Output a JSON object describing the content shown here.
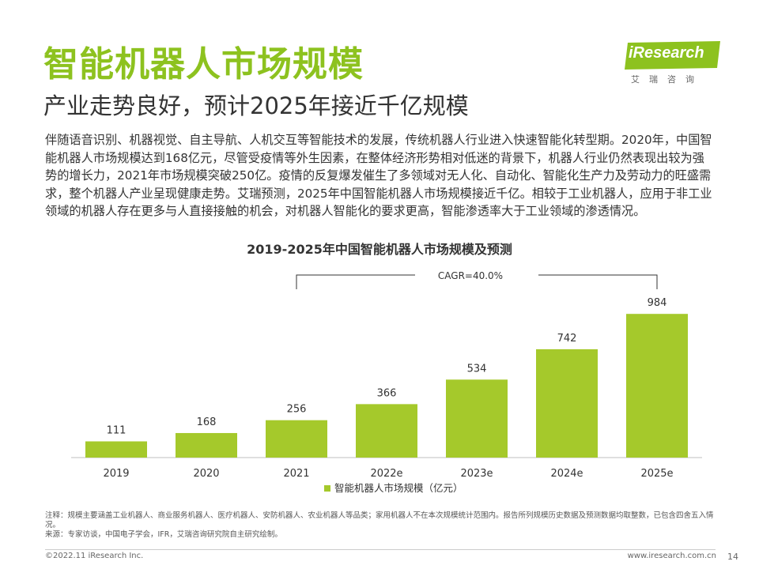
{
  "header": {
    "title": "智能机器人市场规模",
    "subtitle": "产业走势良好，预计2025年接近千亿规模"
  },
  "logo": {
    "text": "iResearch",
    "cn": "艾瑞咨询",
    "color": "#8dc21f"
  },
  "body": {
    "paragraph": "伴随语音识别、机器视觉、自主导航、人机交互等智能技术的发展，传统机器人行业进入快速智能化转型期。2020年，中国智能机器人市场规模达到168亿元，尽管受疫情等外生因素，在整体经济形势相对低迷的背景下，机器人行业仍然表现出较为强势的增长力，2021年市场规模突破250亿。疫情的反复爆发催生了多领域对无人化、自动化、智能化生产力及劳动力的旺盛需求，整个机器人产业呈现健康走势。艾瑞预测，2025年中国智能机器人市场规模接近千亿。相较于工业机器人，应用于非工业领域的机器人存在更多与人直接接触的机会，对机器人智能化的要求更高，智能渗透率大于工业领域的渗透情况。"
  },
  "chart_data": {
    "type": "bar",
    "title": "2019-2025年中国智能机器人市场规模及预测",
    "categories": [
      "2019",
      "2020",
      "2021",
      "2022e",
      "2023e",
      "2024e",
      "2025e"
    ],
    "series": [
      {
        "name": "智能机器人市场规模（亿元）",
        "values": [
          111,
          168,
          256,
          366,
          534,
          742,
          984
        ],
        "color": "#a5c92b"
      }
    ],
    "annotation": "CAGR=40.0%",
    "annotation_span": [
      "2021",
      "2025e"
    ],
    "ylim": [
      0,
      1050
    ],
    "grid": false,
    "legend_position": "bottom"
  },
  "notes": {
    "line1": "注释：规模主要涵盖工业机器人、商业服务机器人、医疗机器人、安防机器人、农业机器人等品类；家用机器人不在本次规模统计范围内。报告所列规模历史数据及预测数据均取整数，已包含四舍五入情况。",
    "line2": "来源：专家访谈，中国电子学会，IFR，艾瑞咨询研究院自主研究绘制。"
  },
  "footer": {
    "copyright": "©2022.11 iResearch Inc.",
    "url": "www.iresearch.com.cn",
    "page": "14"
  }
}
